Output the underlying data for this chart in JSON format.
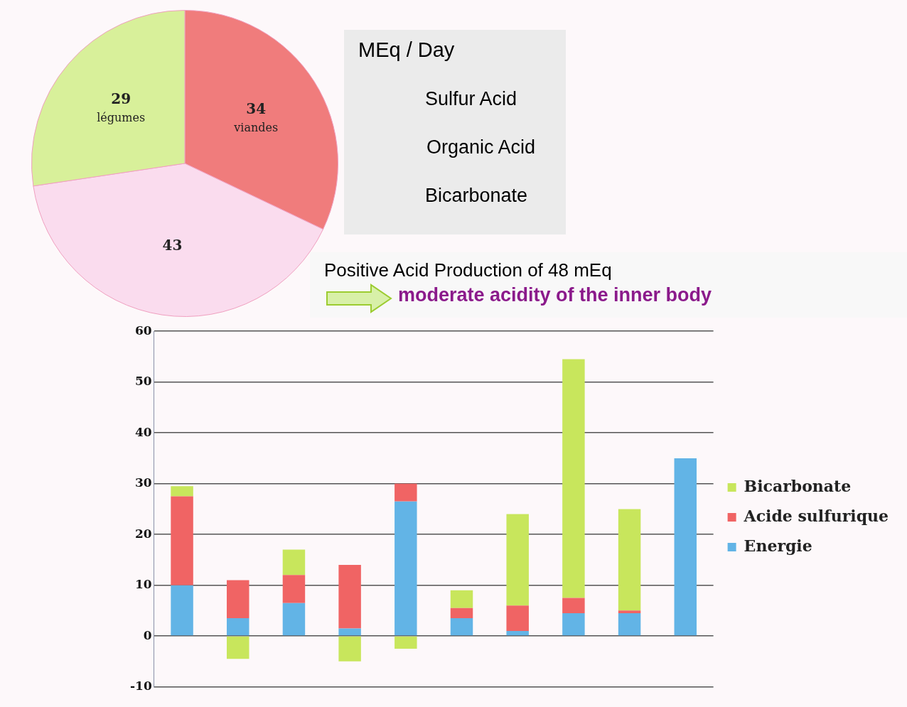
{
  "chart_data": [
    {
      "type": "pie",
      "categories": [
        "viandes",
        null,
        "légumes"
      ],
      "values": [
        34,
        43,
        29
      ],
      "colors": [
        "#f07c7c",
        "#fadcee",
        "#d8f09a"
      ],
      "data_labels": true,
      "legend": false
    },
    {
      "type": "other",
      "title": "MEq / Day",
      "annotations": [
        "Sulfur Acid",
        "Organic Acid",
        "Bicarbonate"
      ]
    },
    {
      "type": "bar",
      "title": "Positive Acid Production of 48 mEq",
      "subtitle": "moderate acidity of the inner body",
      "stacked": true,
      "categories": [
        null,
        null,
        null,
        null,
        null,
        null,
        null,
        null,
        null,
        null
      ],
      "series": [
        {
          "name": "Energie",
          "color": "#62b4e6",
          "values": [
            10,
            3.5,
            6.5,
            1.5,
            26.5,
            3.5,
            1,
            4.5,
            4.5,
            35
          ]
        },
        {
          "name": "Acide sulfurique",
          "color": "#f06464",
          "values": [
            17.5,
            7.5,
            5.5,
            12.5,
            3.5,
            2,
            5,
            3,
            0.5,
            0
          ]
        },
        {
          "name": "Bicarbonate",
          "color": "#c8e65c",
          "values": [
            2,
            -4.5,
            5,
            -5,
            -2.5,
            3.5,
            18,
            47,
            20,
            0
          ]
        }
      ],
      "ylim": [
        -10,
        60
      ],
      "yticks": [
        -10,
        0,
        10,
        20,
        30,
        40,
        50,
        60
      ],
      "grid": "y",
      "legend": "right"
    }
  ]
}
